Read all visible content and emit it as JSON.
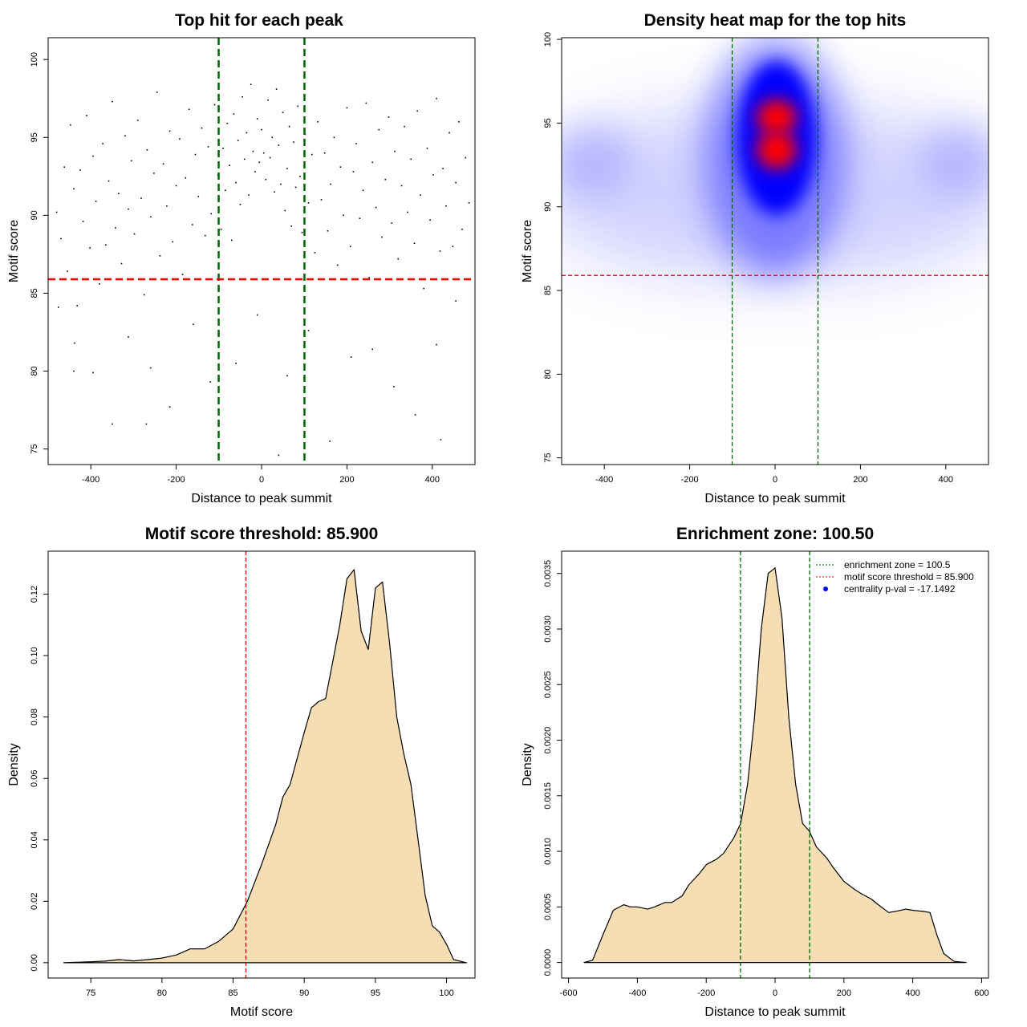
{
  "chart_data": [
    {
      "id": "scatter",
      "type": "scatter",
      "title": "Top hit for each peak",
      "xlabel": "Distance to peak summit",
      "ylabel": "Motif score",
      "xlim": [
        -500,
        500
      ],
      "ylim": [
        74,
        101.4
      ],
      "xticks": [
        -400,
        -200,
        0,
        200,
        400
      ],
      "yticks": [
        75,
        80,
        85,
        90,
        95,
        100
      ],
      "vlines": [
        -100.5,
        100.5
      ],
      "hlines": [
        85.9
      ],
      "vline_color": "#006400",
      "hline_color": "#ff0000",
      "point_color": "#000000",
      "points": [
        [
          -480,
          90.2
        ],
        [
          -470,
          88.5
        ],
        [
          -462,
          93.1
        ],
        [
          -455,
          86.4
        ],
        [
          -448,
          95.8
        ],
        [
          -440,
          91.7
        ],
        [
          -432,
          84.2
        ],
        [
          -425,
          92.9
        ],
        [
          -418,
          89.6
        ],
        [
          -410,
          96.4
        ],
        [
          -402,
          87.9
        ],
        [
          -395,
          93.8
        ],
        [
          -388,
          90.9
        ],
        [
          -380,
          85.6
        ],
        [
          -372,
          94.6
        ],
        [
          -365,
          88.1
        ],
        [
          -358,
          92.2
        ],
        [
          -350,
          97.3
        ],
        [
          -342,
          89.2
        ],
        [
          -335,
          91.4
        ],
        [
          -328,
          86.9
        ],
        [
          -320,
          95.1
        ],
        [
          -312,
          90.4
        ],
        [
          -305,
          93.5
        ],
        [
          -298,
          88.8
        ],
        [
          -290,
          96.1
        ],
        [
          -282,
          91.1
        ],
        [
          -275,
          84.9
        ],
        [
          -268,
          94.2
        ],
        [
          -260,
          89.9
        ],
        [
          -252,
          92.7
        ],
        [
          -245,
          97.9
        ],
        [
          -238,
          87.4
        ],
        [
          -230,
          93.3
        ],
        [
          -222,
          90.6
        ],
        [
          -215,
          95.4
        ],
        [
          -208,
          88.3
        ],
        [
          -200,
          91.9
        ],
        [
          -192,
          94.9
        ],
        [
          -185,
          86.2
        ],
        [
          -178,
          92.4
        ],
        [
          -170,
          96.8
        ],
        [
          -162,
          89.4
        ],
        [
          -155,
          93.9
        ],
        [
          -148,
          91.2
        ],
        [
          -140,
          95.6
        ],
        [
          -132,
          88.7
        ],
        [
          -125,
          94.4
        ],
        [
          -118,
          90.1
        ],
        [
          -110,
          97.1
        ],
        [
          -102,
          92.6
        ],
        [
          -95,
          89.1
        ],
        [
          -90,
          94.3
        ],
        [
          -85,
          91.6
        ],
        [
          -80,
          95.9
        ],
        [
          -75,
          93.2
        ],
        [
          -70,
          88.4
        ],
        [
          -65,
          96.5
        ],
        [
          -60,
          92.1
        ],
        [
          -55,
          94.8
        ],
        [
          -50,
          90.7
        ],
        [
          -45,
          97.6
        ],
        [
          -40,
          93.6
        ],
        [
          -35,
          95.3
        ],
        [
          -30,
          91.3
        ],
        [
          -25,
          98.4
        ],
        [
          -20,
          94.1
        ],
        [
          -15,
          92.8
        ],
        [
          -10,
          96.2
        ],
        [
          -5,
          93.4
        ],
        [
          0,
          95.5
        ],
        [
          5,
          94.0
        ],
        [
          10,
          92.3
        ],
        [
          15,
          97.4
        ],
        [
          20,
          93.7
        ],
        [
          25,
          95.0
        ],
        [
          30,
          91.5
        ],
        [
          35,
          98.1
        ],
        [
          40,
          94.5
        ],
        [
          45,
          92.0
        ],
        [
          50,
          96.6
        ],
        [
          55,
          90.3
        ],
        [
          60,
          93.0
        ],
        [
          65,
          95.7
        ],
        [
          70,
          89.3
        ],
        [
          75,
          94.7
        ],
        [
          80,
          91.8
        ],
        [
          85,
          97.0
        ],
        [
          90,
          92.5
        ],
        [
          95,
          88.9
        ],
        [
          102,
          95.2
        ],
        [
          110,
          90.8
        ],
        [
          118,
          93.9
        ],
        [
          125,
          87.6
        ],
        [
          132,
          96.0
        ],
        [
          140,
          91.0
        ],
        [
          148,
          94.0
        ],
        [
          155,
          89.0
        ],
        [
          162,
          92.0
        ],
        [
          170,
          95.0
        ],
        [
          178,
          86.8
        ],
        [
          185,
          93.1
        ],
        [
          192,
          90.0
        ],
        [
          200,
          96.9
        ],
        [
          208,
          88.0
        ],
        [
          215,
          92.8
        ],
        [
          222,
          94.6
        ],
        [
          230,
          89.8
        ],
        [
          238,
          91.6
        ],
        [
          245,
          97.2
        ],
        [
          252,
          86.0
        ],
        [
          260,
          93.4
        ],
        [
          268,
          90.5
        ],
        [
          275,
          95.5
        ],
        [
          282,
          88.6
        ],
        [
          290,
          92.3
        ],
        [
          298,
          96.3
        ],
        [
          305,
          89.5
        ],
        [
          312,
          94.1
        ],
        [
          320,
          87.2
        ],
        [
          328,
          91.9
        ],
        [
          335,
          95.7
        ],
        [
          342,
          90.2
        ],
        [
          350,
          93.6
        ],
        [
          358,
          88.2
        ],
        [
          365,
          96.7
        ],
        [
          372,
          91.3
        ],
        [
          380,
          85.3
        ],
        [
          388,
          94.3
        ],
        [
          395,
          89.7
        ],
        [
          402,
          92.6
        ],
        [
          410,
          97.5
        ],
        [
          418,
          87.7
        ],
        [
          425,
          93.0
        ],
        [
          432,
          90.6
        ],
        [
          440,
          95.3
        ],
        [
          448,
          88.0
        ],
        [
          455,
          92.1
        ],
        [
          462,
          96.0
        ],
        [
          470,
          89.1
        ],
        [
          478,
          93.7
        ],
        [
          486,
          90.8
        ],
        [
          -476,
          84.1
        ],
        [
          -438,
          81.8
        ],
        [
          -395,
          79.9
        ],
        [
          -350,
          76.6
        ],
        [
          -312,
          82.2
        ],
        [
          -260,
          80.2
        ],
        [
          -215,
          77.7
        ],
        [
          -160,
          83.0
        ],
        [
          -120,
          79.3
        ],
        [
          -60,
          80.5
        ],
        [
          -10,
          83.6
        ],
        [
          40,
          74.6
        ],
        [
          60,
          79.7
        ],
        [
          110,
          82.6
        ],
        [
          160,
          75.5
        ],
        [
          210,
          80.9
        ],
        [
          260,
          81.4
        ],
        [
          310,
          79.0
        ],
        [
          360,
          77.2
        ],
        [
          410,
          81.7
        ],
        [
          420,
          75.6
        ],
        [
          455,
          84.5
        ],
        [
          -270,
          76.6
        ],
        [
          -440,
          80.0
        ]
      ]
    },
    {
      "id": "heatmap",
      "type": "heatmap",
      "title": "Density heat map for the top hits",
      "xlabel": "Distance to peak summit",
      "ylabel": "Motif score",
      "xlim": [
        -500,
        500
      ],
      "ylim": [
        74.6,
        100.1
      ],
      "xticks": [
        -400,
        -200,
        0,
        200,
        400
      ],
      "yticks": [
        75,
        80,
        85,
        90,
        95,
        100
      ],
      "vlines": [
        -100.5,
        100.5
      ],
      "hlines": [
        85.9
      ],
      "vline_color": "#006400",
      "hline_color": "#e00000",
      "color_scale": [
        "#ffffff",
        "#0000ff",
        "#ff0000"
      ],
      "density_peaks": [
        {
          "x": 0,
          "y": 95.2,
          "weight": 1.0
        },
        {
          "x": 0,
          "y": 93.3,
          "weight": 1.0
        },
        {
          "x": -450,
          "y": 93.0,
          "weight": 0.18
        },
        {
          "x": 450,
          "y": 93.0,
          "weight": 0.18
        }
      ]
    },
    {
      "id": "score-density",
      "type": "area",
      "title": "Motif score threshold: 85.900",
      "xlabel": "Motif score",
      "ylabel": "Density",
      "xlim": [
        72,
        102
      ],
      "ylim": [
        -0.005,
        0.134
      ],
      "xticks": [
        75,
        80,
        85,
        90,
        95,
        100
      ],
      "yticks": [
        0.0,
        0.02,
        0.04,
        0.06,
        0.08,
        0.1,
        0.12
      ],
      "ytick_labels": [
        "0.00",
        "0.02",
        "0.04",
        "0.06",
        "0.08",
        "0.10",
        "0.12"
      ],
      "vlines": [
        85.9
      ],
      "vline_color": "#e00000",
      "fill_color": "#f5deb3",
      "x": [
        73.1,
        75,
        76,
        77,
        78,
        79,
        80,
        81,
        82,
        83,
        84,
        85,
        86,
        87,
        88,
        88.5,
        89,
        90,
        90.5,
        91,
        91.5,
        92,
        92.5,
        93,
        93.5,
        94,
        94.5,
        95,
        95.5,
        96,
        96.5,
        97,
        97.5,
        98,
        98.5,
        99,
        99.5,
        100,
        100.5,
        101.4
      ],
      "values": [
        0.0,
        0.0003,
        0.0005,
        0.001,
        0.0006,
        0.001,
        0.0015,
        0.0025,
        0.0045,
        0.0045,
        0.007,
        0.011,
        0.02,
        0.032,
        0.045,
        0.054,
        0.058,
        0.075,
        0.083,
        0.085,
        0.086,
        0.098,
        0.11,
        0.125,
        0.128,
        0.108,
        0.102,
        0.122,
        0.124,
        0.104,
        0.08,
        0.068,
        0.058,
        0.04,
        0.022,
        0.012,
        0.01,
        0.006,
        0.001,
        0.0
      ]
    },
    {
      "id": "distance-density",
      "type": "area",
      "title": "Enrichment zone: 100.50",
      "xlabel": "Distance to peak summit",
      "ylabel": "Density",
      "xlim": [
        -620,
        620
      ],
      "ylim": [
        -0.00014,
        0.0037
      ],
      "xticks": [
        -600,
        -400,
        -200,
        0,
        200,
        400,
        600
      ],
      "yticks": [
        0.0,
        0.0005,
        0.001,
        0.0015,
        0.002,
        0.0025,
        0.003,
        0.0035
      ],
      "ytick_labels": [
        "0.0000",
        "0.0005",
        "0.0010",
        "0.0015",
        "0.0020",
        "0.0025",
        "0.0030",
        "0.0035"
      ],
      "vlines": [
        -100.5,
        100.5
      ],
      "vline_color": "#006400",
      "fill_color": "#f5deb3",
      "x": [
        -555,
        -530,
        -500,
        -470,
        -440,
        -420,
        -400,
        -370,
        -350,
        -320,
        -300,
        -270,
        -250,
        -220,
        -200,
        -170,
        -150,
        -120,
        -100,
        -80,
        -60,
        -40,
        -20,
        0,
        20,
        40,
        60,
        80,
        100,
        120,
        150,
        170,
        200,
        230,
        250,
        280,
        300,
        330,
        350,
        380,
        400,
        430,
        450,
        470,
        490,
        520,
        555
      ],
      "values": [
        0.0,
        2e-05,
        0.00025,
        0.00047,
        0.00052,
        0.0005,
        0.0005,
        0.00048,
        0.0005,
        0.00054,
        0.00054,
        0.0006,
        0.0007,
        0.0008,
        0.00088,
        0.00093,
        0.00098,
        0.00112,
        0.00125,
        0.0016,
        0.0022,
        0.003,
        0.0035,
        0.00355,
        0.0031,
        0.0022,
        0.0016,
        0.00125,
        0.00118,
        0.00104,
        0.00094,
        0.00085,
        0.00073,
        0.00066,
        0.00062,
        0.00057,
        0.00052,
        0.00045,
        0.00046,
        0.00048,
        0.00047,
        0.00046,
        0.00045,
        0.00025,
        8e-05,
        1e-05,
        0.0
      ],
      "legend": {
        "position": "top-right",
        "entries": [
          {
            "label": "enrichment zone = 100.5",
            "style": "dotted-line",
            "color": "#006400"
          },
          {
            "label": "motif score threshold = 85.900",
            "style": "dotted-line",
            "color": "#ff0000"
          },
          {
            "label": "centrality p-val = -17.1492",
            "style": "point",
            "color": "#0000ff"
          }
        ]
      }
    }
  ]
}
